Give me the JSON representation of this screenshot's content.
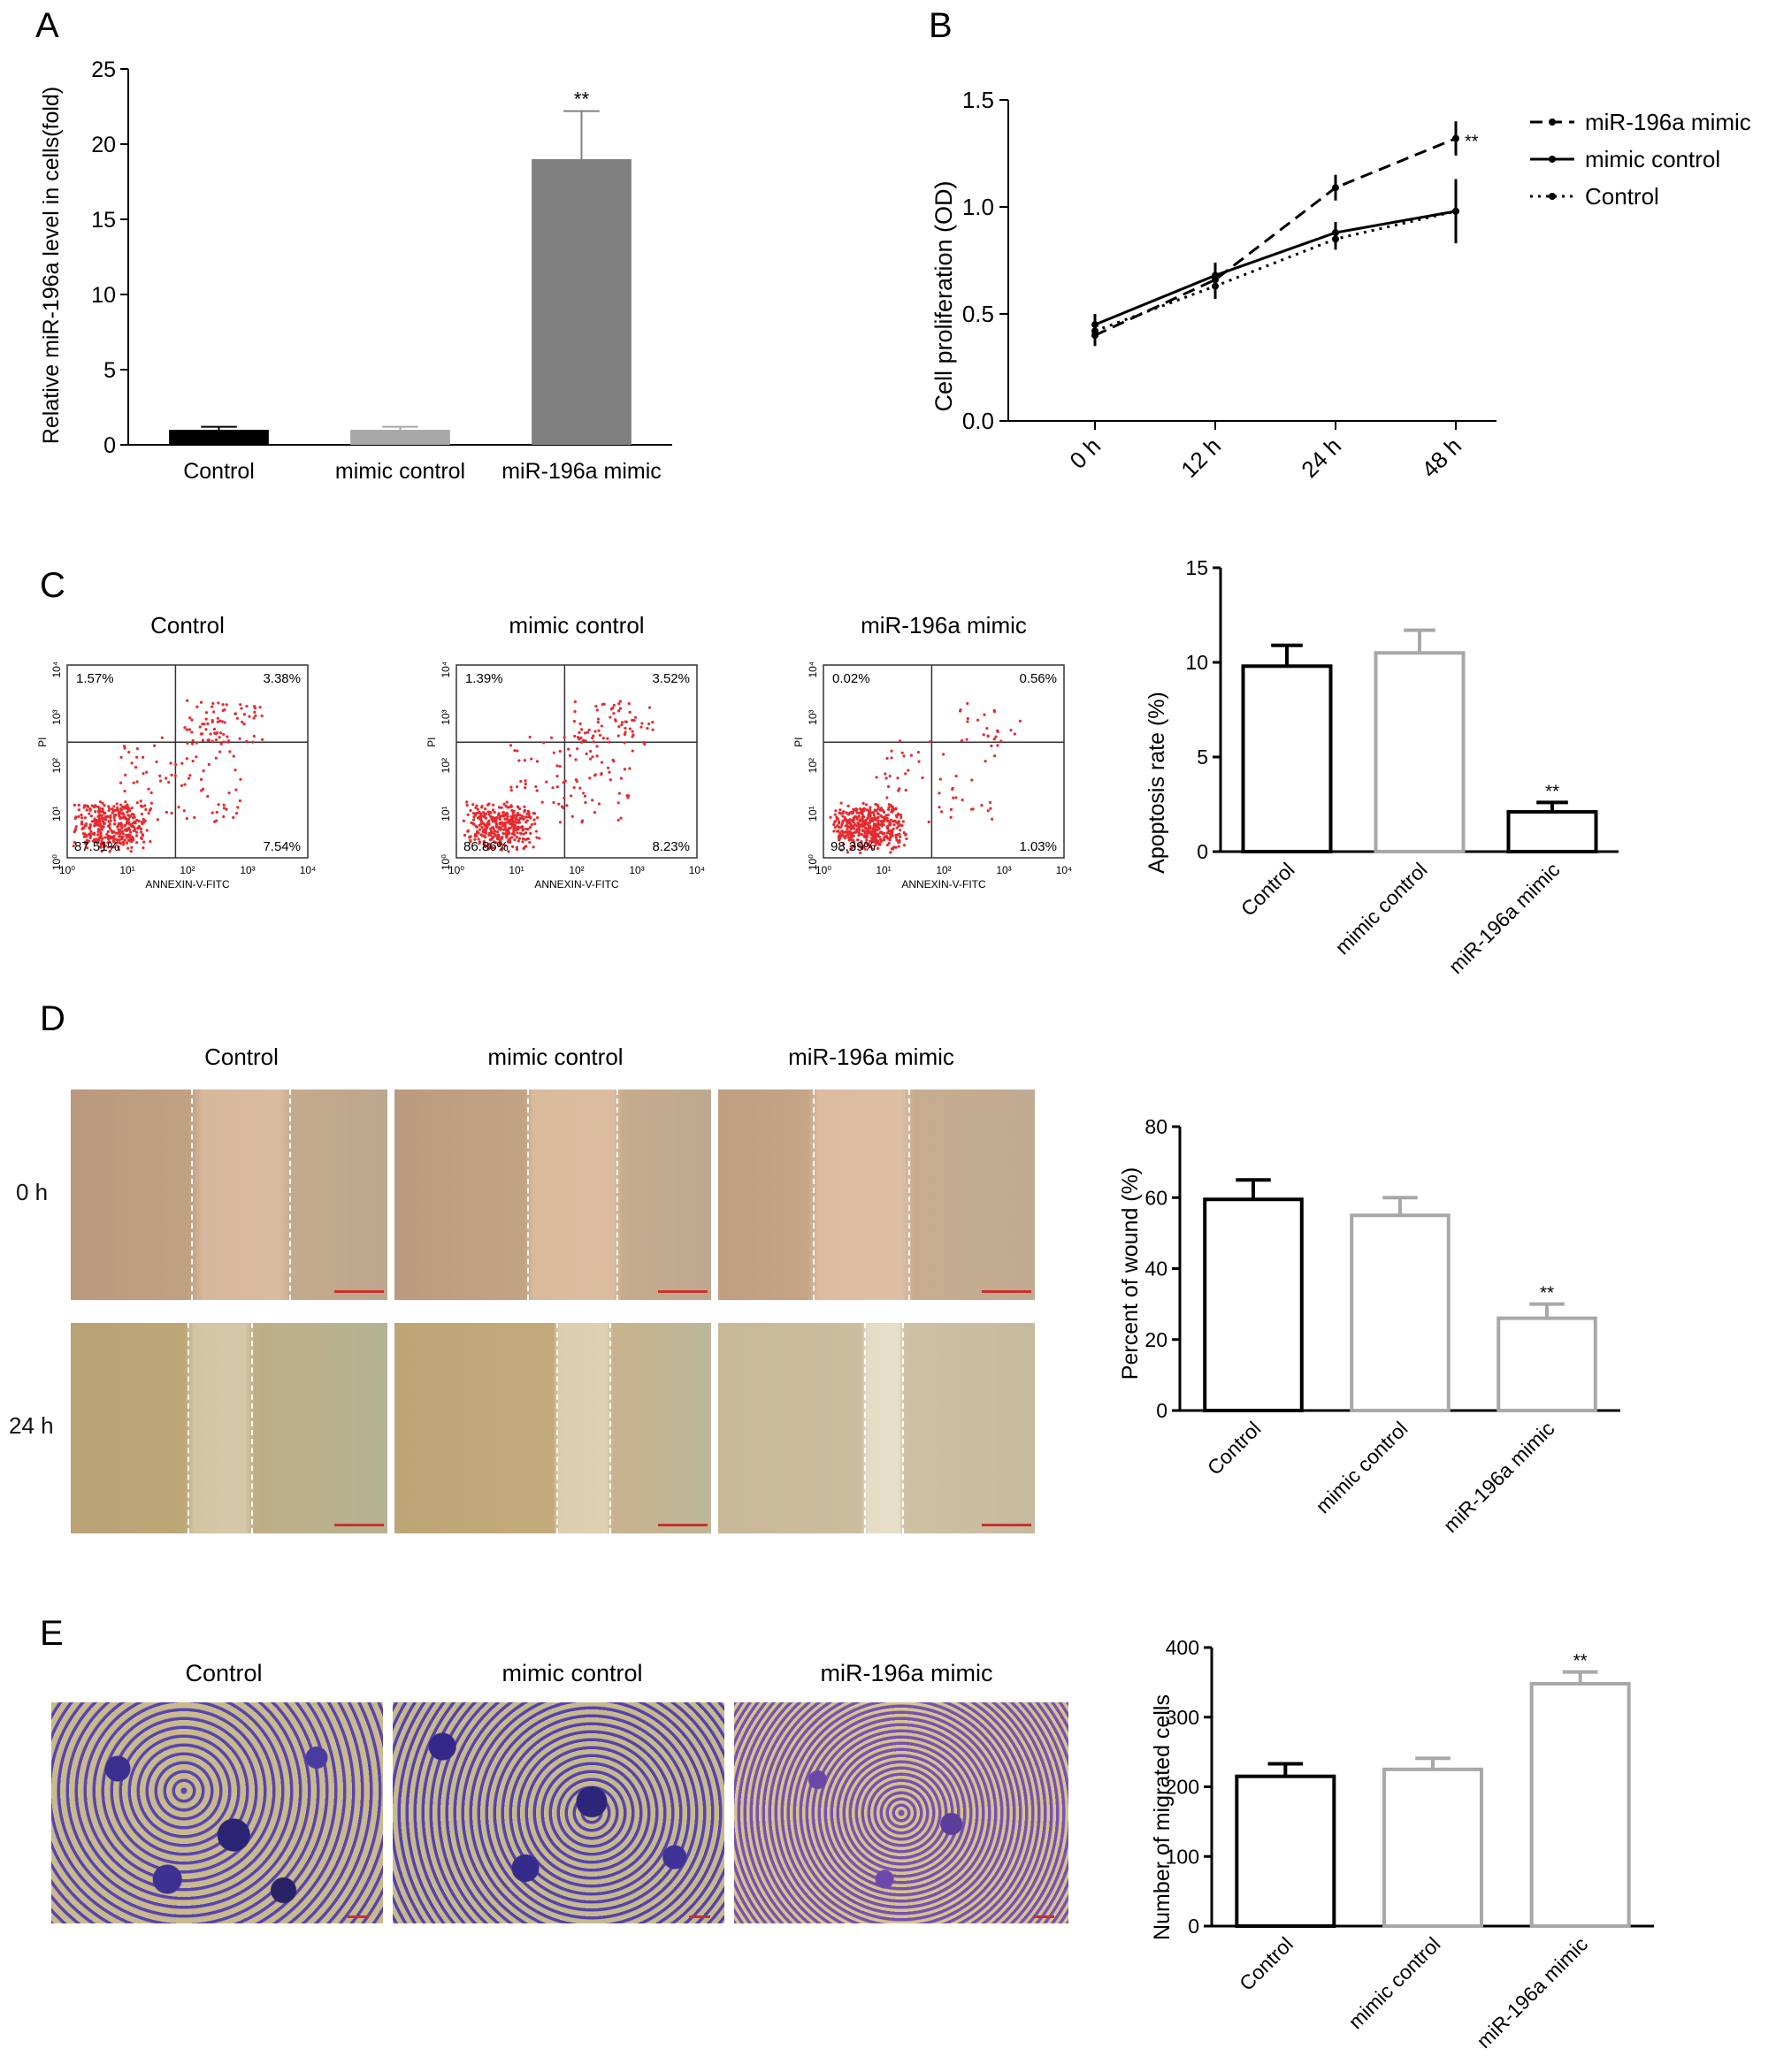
{
  "panels": {
    "A": {
      "letter": "A",
      "chart_data": {
        "type": "bar",
        "categories": [
          "Control",
          "mimic control",
          "miR-196a mimic"
        ],
        "values": [
          1.0,
          1.0,
          19.0
        ],
        "errors": [
          0.2,
          0.2,
          3.2
        ],
        "colors": [
          "#000000",
          "#a8a8a8",
          "#808080"
        ],
        "ylabel": "Relative miR-196a level in cells(fold)",
        "ylim": [
          0,
          25
        ],
        "yticks": [
          "0",
          "5",
          "10",
          "15",
          "20",
          "25"
        ],
        "significance": [
          "",
          "",
          "**"
        ]
      }
    },
    "B": {
      "letter": "B",
      "chart_data": {
        "type": "line",
        "x": [
          "0 h",
          "12 h",
          "24 h",
          "48 h"
        ],
        "ylabel": "Cell proliferation (OD)",
        "ylim": [
          0,
          1.5
        ],
        "yticks": [
          "0.0",
          "0.5",
          "1.0",
          "1.5"
        ],
        "legend_position": "top-right",
        "series": [
          {
            "name": "miR-196a mimic",
            "values": [
              0.4,
              0.66,
              1.09,
              1.32
            ],
            "errors": [
              0.05,
              0.06,
              0.06,
              0.08
            ],
            "dash": "dashed"
          },
          {
            "name": "mimic control",
            "values": [
              0.45,
              0.68,
              0.88,
              0.98
            ],
            "errors": [
              0.05,
              0.06,
              0.05,
              0.15
            ],
            "dash": "solid"
          },
          {
            "name": "Control",
            "values": [
              0.42,
              0.63,
              0.85,
              0.98
            ],
            "errors": [
              0.05,
              0.06,
              0.05,
              0.12
            ],
            "dash": "dotted"
          }
        ],
        "annotation": "**"
      }
    },
    "C": {
      "letter": "C",
      "flow_plots": [
        {
          "title": "Control",
          "ul": "1.57%",
          "ur": "3.38%",
          "ll": "87.51%",
          "lr": "7.54%"
        },
        {
          "title": "mimic control",
          "ul": "1.39%",
          "ur": "3.52%",
          "ll": "86.86%",
          "lr": "8.23%"
        },
        {
          "title": "miR-196a mimic",
          "ul": "0.02%",
          "ur": "0.56%",
          "ll": "98.39%",
          "lr": "1.03%"
        }
      ],
      "flow_axes": {
        "xlabel": "ANNEXIN-V-FITC",
        "ylabel": "PI",
        "ticks": [
          "10⁰",
          "10¹",
          "10²",
          "10³",
          "10⁴"
        ]
      },
      "chart_data": {
        "type": "bar",
        "categories": [
          "Control",
          "mimic control",
          "miR-196a mimic"
        ],
        "values": [
          9.8,
          10.5,
          2.1
        ],
        "errors": [
          1.1,
          1.2,
          0.5
        ],
        "bar_edge_colors": [
          "#000000",
          "#a8a8a8",
          "#000000"
        ],
        "ylabel": "Apoptosis rate (%)",
        "ylim": [
          0,
          15
        ],
        "yticks": [
          "0",
          "5",
          "10",
          "15"
        ],
        "significance": [
          "",
          "",
          "**"
        ]
      }
    },
    "D": {
      "letter": "D",
      "columns": [
        "Control",
        "mimic control",
        "miR-196a mimic"
      ],
      "rows": [
        "0 h",
        "24 h"
      ],
      "chart_data": {
        "type": "bar",
        "categories": [
          "Control",
          "mimic control",
          "miR-196a mimic"
        ],
        "values": [
          59.5,
          55.0,
          26.0
        ],
        "errors": [
          5.5,
          5.0,
          4.0
        ],
        "bar_edge_colors": [
          "#000000",
          "#a8a8a8",
          "#a8a8a8"
        ],
        "ylabel": "Percent of wound (%)",
        "ylim": [
          0,
          80
        ],
        "yticks": [
          "0",
          "20",
          "40",
          "60",
          "80"
        ],
        "significance": [
          "",
          "",
          "**"
        ]
      }
    },
    "E": {
      "letter": "E",
      "columns": [
        "Control",
        "mimic control",
        "miR-196a mimic"
      ],
      "chart_data": {
        "type": "bar",
        "categories": [
          "Control",
          "mimic control",
          "miR-196a mimic"
        ],
        "values": [
          215,
          225,
          348
        ],
        "errors": [
          18,
          16,
          17
        ],
        "bar_edge_colors": [
          "#000000",
          "#a8a8a8",
          "#a8a8a8"
        ],
        "ylabel": "Number of migrated cells",
        "ylim": [
          0,
          400
        ],
        "yticks": [
          "0",
          "100",
          "200",
          "300",
          "400"
        ],
        "significance": [
          "",
          "",
          "**"
        ]
      }
    }
  }
}
